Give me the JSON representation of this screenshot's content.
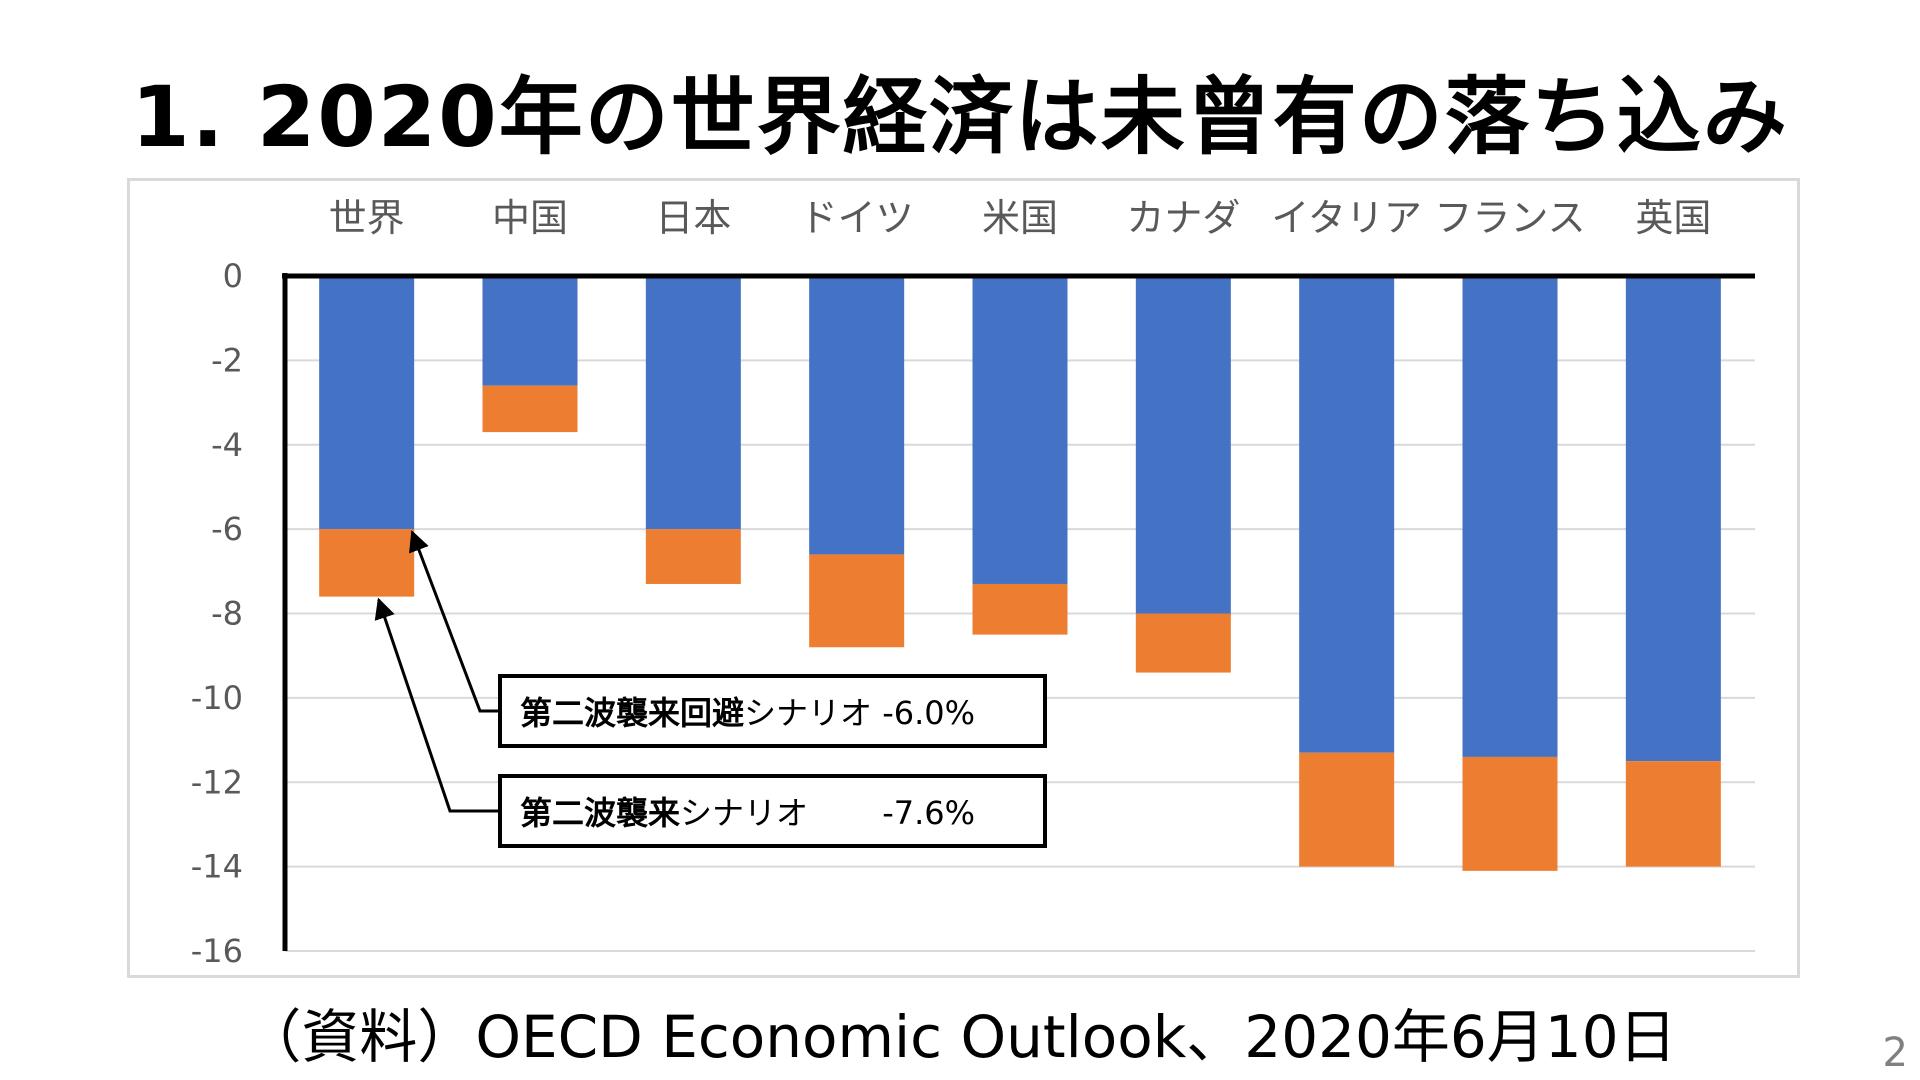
{
  "title": "1. 2020年の世界経済は未曾有の落ち込み",
  "source": "（資料）OECD Economic Outlook、2020年6月10日",
  "page_number": "2",
  "chart_data": {
    "type": "bar",
    "stacked": true,
    "categories": [
      "世界",
      "中国",
      "日本",
      "ドイツ",
      "米国",
      "カナダ",
      "イタリア",
      "フランス",
      "英国"
    ],
    "series": [
      {
        "color": "#4472c4",
        "values": [
          -6.0,
          -2.6,
          -6.0,
          -6.6,
          -7.3,
          -8.0,
          -11.3,
          -11.4,
          -11.5
        ]
      },
      {
        "color": "#ed7d31",
        "values": [
          -1.6,
          -1.1,
          -1.3,
          -2.2,
          -1.2,
          -1.4,
          -2.7,
          -2.7,
          -2.5
        ]
      }
    ],
    "ylim": [
      -16,
      0
    ],
    "yticks": [
      0,
      -2,
      -4,
      -6,
      -8,
      -10,
      -12,
      -14,
      -16
    ],
    "grid": true,
    "category_axis_position": "top",
    "annotations": [
      {
        "bold": "第二波襲来回避",
        "normal": "シナリオ -6.0%",
        "points_to": {
          "category": "世界",
          "value": -6.0
        }
      },
      {
        "bold": "第二波襲来",
        "normal": "シナリオ　　 -7.6%",
        "points_to": {
          "category": "世界",
          "value": -7.6
        }
      }
    ]
  }
}
